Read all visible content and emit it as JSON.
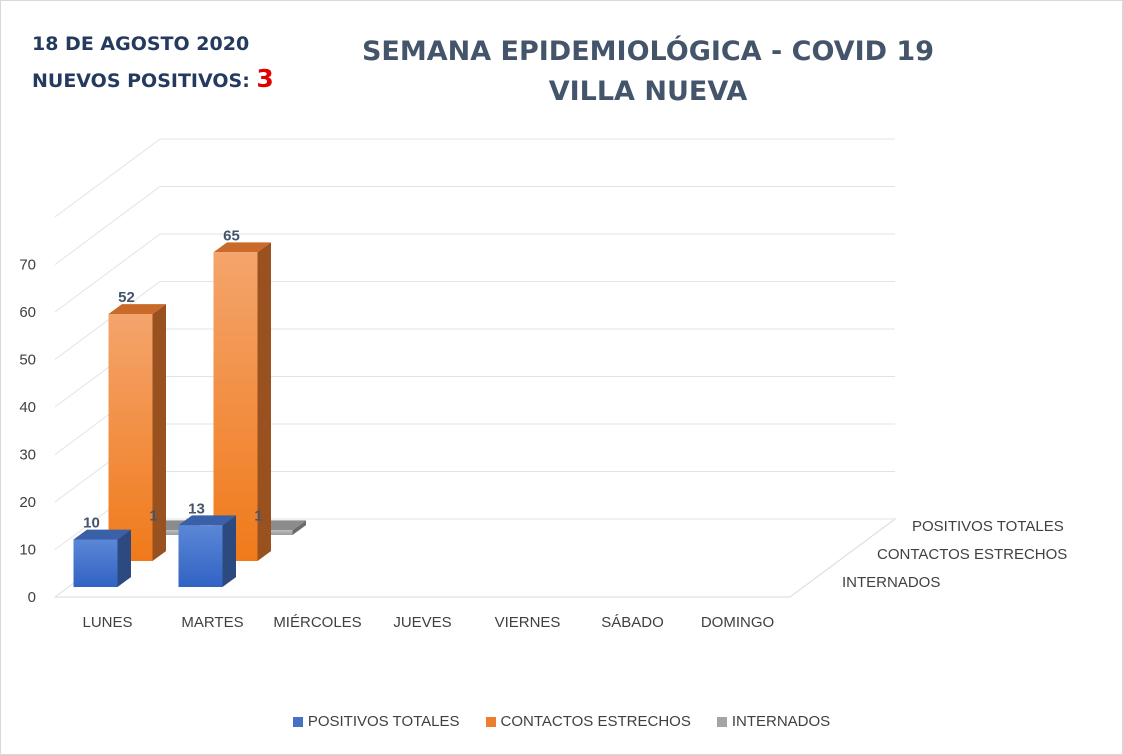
{
  "header": {
    "date": "18 DE AGOSTO 2020",
    "new_positives_label": "NUEVOS POSITIVOS:",
    "new_positives_value": "3"
  },
  "chart_data": {
    "type": "bar",
    "subtype": "3d-column",
    "title": "SEMANA EPIDEMIOLÓGICA - COVID 19",
    "subtitle": "VILLA NUEVA",
    "categories": [
      "LUNES",
      "MARTES",
      "MIÉRCOLES",
      "JUEVES",
      "VIERNES",
      "SÁBADO",
      "DOMINGO"
    ],
    "series": [
      {
        "name": "POSITIVOS TOTALES",
        "color": "#4472c4",
        "values": [
          10,
          13,
          null,
          null,
          null,
          null,
          null
        ]
      },
      {
        "name": "CONTACTOS ESTRECHOS",
        "color": "#ed7d31",
        "values": [
          52,
          65,
          null,
          null,
          null,
          null,
          null
        ]
      },
      {
        "name": "INTERNADOS",
        "color": "#a5a5a5",
        "values": [
          1,
          1,
          null,
          null,
          null,
          null,
          null
        ]
      }
    ],
    "depth_labels": [
      "INTERNADOS",
      "CONTACTOS ESTRECHOS",
      "POSITIVOS TOTALES"
    ],
    "y_ticks": [
      0,
      10,
      20,
      30,
      40,
      50,
      60,
      70
    ],
    "ylim": [
      0,
      70
    ],
    "legend_position": "bottom",
    "grid": true
  }
}
